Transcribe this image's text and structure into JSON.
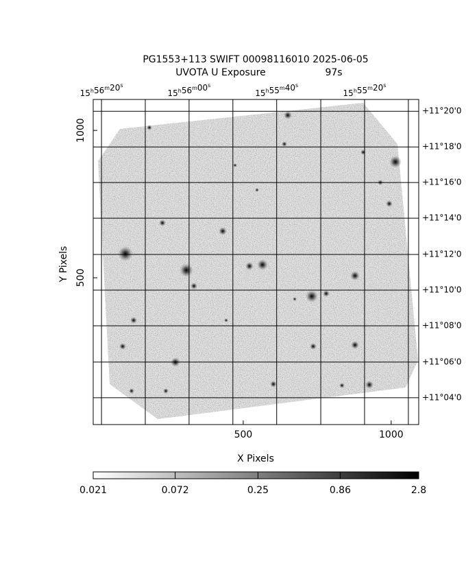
{
  "chart_data": {
    "type": "image",
    "title": "PG1553+113 SWIFT 00098116010 2025-06-05",
    "subtitle": "UVOTA U Exposure",
    "exposure": "97s",
    "x_label": "X Pixels",
    "y_label": "Y Pixels",
    "xlim": [
      -7,
      1093
    ],
    "ylim": [
      2,
      1105
    ],
    "xticks": [
      500,
      1000
    ],
    "yticks": [
      500,
      1000
    ],
    "ra_units": [
      "h",
      "m",
      "s"
    ],
    "ra_grid": [
      21,
      169,
      317,
      465,
      613,
      762,
      910,
      1058
    ],
    "ra_labels": [
      {
        "value": 21,
        "hours": "15",
        "minutes": "56",
        "seconds": "20"
      },
      {
        "value": 317,
        "hours": "15",
        "minutes": "56",
        "seconds": "00"
      },
      {
        "value": 613,
        "hours": "15",
        "minutes": "55",
        "seconds": "40"
      },
      {
        "value": 910,
        "hours": "15",
        "minutes": "55",
        "seconds": "20"
      }
    ],
    "dec_ticks": [
      {
        "value": 1065,
        "label": "+11°20'0"
      },
      {
        "value": 944,
        "label": "+11°18'0"
      },
      {
        "value": 823,
        "label": "+11°16'0"
      },
      {
        "value": 702,
        "label": "+11°14'0"
      },
      {
        "value": 579,
        "label": "+11°12'0"
      },
      {
        "value": 458,
        "label": "+11°10'0"
      },
      {
        "value": 337,
        "label": "+11°08'0"
      },
      {
        "value": 214,
        "label": "+11°06'0"
      },
      {
        "value": 93,
        "label": "+11°04'0"
      }
    ],
    "colorbar": {
      "lim": [
        0.021,
        2.8
      ],
      "ticks": [
        0.021,
        0.072,
        0.25,
        0.86,
        2.8
      ],
      "log": true
    }
  }
}
